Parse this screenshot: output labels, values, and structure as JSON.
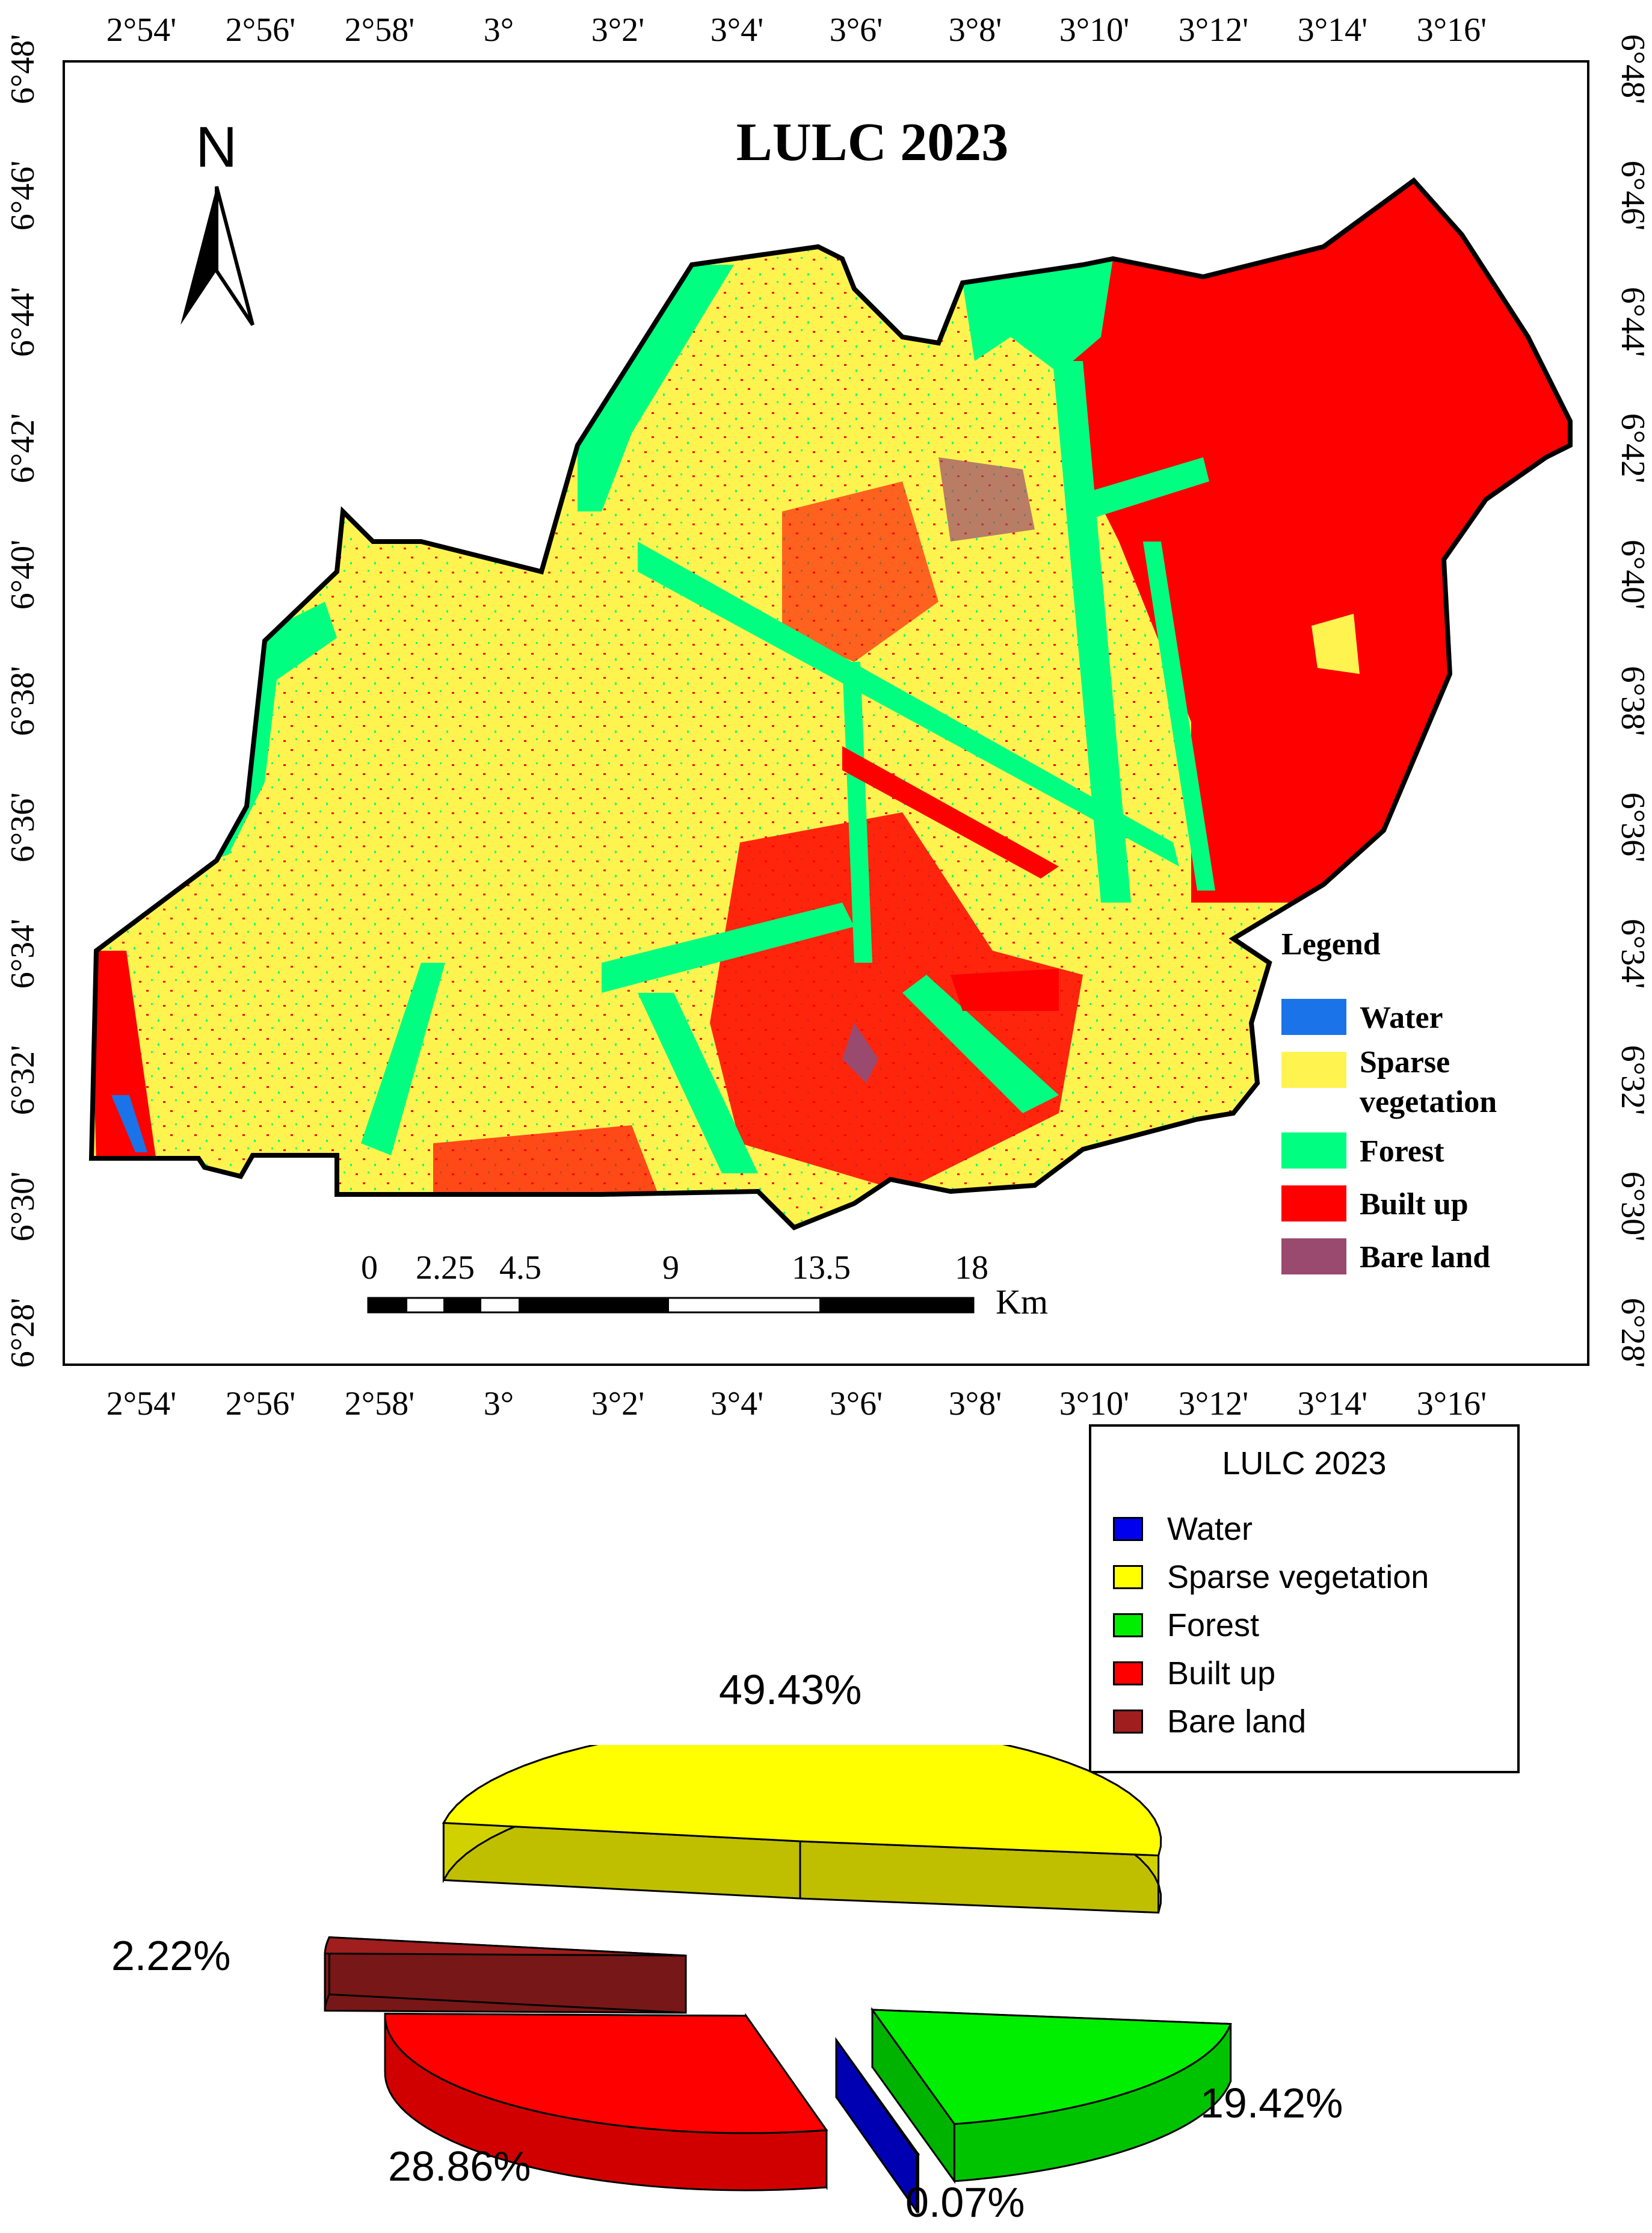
{
  "map": {
    "title": "LULC 2023",
    "north_label": "N",
    "lon_ticks": [
      "2°54'",
      "2°56'",
      "2°58'",
      "3°",
      "3°2'",
      "3°4'",
      "3°6'",
      "3°8'",
      "3°10'",
      "3°12'",
      "3°14'",
      "3°16'"
    ],
    "lat_ticks": [
      "6°28'",
      "6°30'",
      "6°32'",
      "6°34'",
      "6°36'",
      "6°38'",
      "6°40'",
      "6°42'",
      "6°44'",
      "6°46'",
      "6°48'"
    ],
    "legend": {
      "title": "Legend",
      "items": [
        {
          "label": "Water",
          "color": "#1a73e8"
        },
        {
          "label": "Sparse vegetation",
          "label_line1": "Sparse",
          "label_line2": "vegetation",
          "color": "#fff44f"
        },
        {
          "label": "Forest",
          "color": "#00ff80"
        },
        {
          "label": "Built up",
          "color": "#ff0000"
        },
        {
          "label": "Bare land",
          "color": "#9a4a6e"
        }
      ]
    },
    "scale_bar": {
      "ticks": [
        "0",
        "2.25",
        "4.5",
        "9",
        "13.5",
        "18"
      ],
      "unit": "Km"
    },
    "colors": {
      "forest": "#00ff80",
      "sparse": "#fff44f",
      "built": "#ff0000",
      "bare": "#9a4a6e",
      "water": "#1a73e8"
    }
  },
  "chart_data": {
    "type": "pie",
    "title": "LULC 2023",
    "legend_placement": "top-right",
    "categories": [
      "Water",
      "Sparse vegetation",
      "Forest",
      "Built up",
      "Bare land"
    ],
    "values": [
      0.07,
      49.43,
      19.42,
      28.86,
      2.22
    ],
    "labels": [
      "0.07%",
      "49.43%",
      "19.42%",
      "28.86%",
      "2.22%"
    ],
    "colors": [
      "#0000ee",
      "#ffff00",
      "#00ee00",
      "#ff0000",
      "#a01e1e"
    ]
  }
}
